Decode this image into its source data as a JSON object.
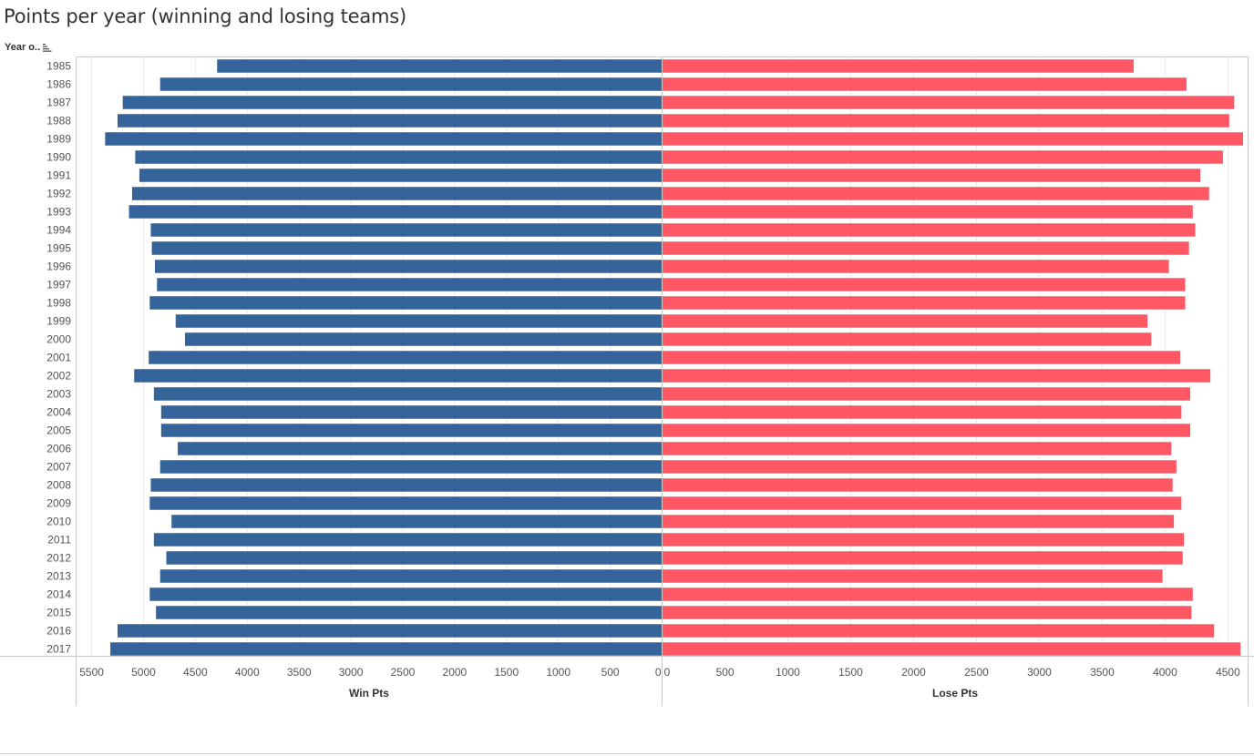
{
  "title": "Points per year (winning and losing teams)",
  "row_header": {
    "label": "Year o..",
    "sort_icon": "sort-descending-icon"
  },
  "colors": {
    "win": "#35649a",
    "lose": "#fd5863",
    "grid": "#ebebeb",
    "axis": "#c9c9c9",
    "text": "#555555"
  },
  "chart_data": {
    "type": "bar",
    "orientation": "horizontal",
    "layout": "butterfly",
    "title": "Points per year (winning and losing teams)",
    "categories": [
      "1985",
      "1986",
      "1987",
      "1988",
      "1989",
      "1990",
      "1991",
      "1992",
      "1993",
      "1994",
      "1995",
      "1996",
      "1997",
      "1998",
      "1999",
      "2000",
      "2001",
      "2002",
      "2003",
      "2004",
      "2005",
      "2006",
      "2007",
      "2008",
      "2009",
      "2010",
      "2011",
      "2012",
      "2013",
      "2014",
      "2015",
      "2016",
      "2017"
    ],
    "series": [
      {
        "name": "Win Pts",
        "axis_label": "Win Pts",
        "direction": "left",
        "xlim": [
          0,
          5650
        ],
        "ticks": [
          5500,
          5000,
          4500,
          4000,
          3500,
          3000,
          2500,
          2000,
          1500,
          1000,
          500,
          0
        ],
        "values": [
          4290,
          4840,
          5200,
          5250,
          5370,
          5080,
          5040,
          5110,
          5140,
          4930,
          4920,
          4890,
          4870,
          4940,
          4690,
          4600,
          4950,
          5090,
          4900,
          4830,
          4830,
          4670,
          4840,
          4930,
          4940,
          4730,
          4900,
          4780,
          4840,
          4940,
          4880,
          5250,
          5320
        ]
      },
      {
        "name": "Lose Pts",
        "axis_label": "Lose Pts",
        "direction": "right",
        "xlim": [
          0,
          4660
        ],
        "ticks": [
          0,
          500,
          1000,
          1500,
          2000,
          2500,
          3000,
          3500,
          4000,
          4500
        ],
        "values": [
          3750,
          4170,
          4550,
          4510,
          4620,
          4460,
          4280,
          4350,
          4220,
          4240,
          4190,
          4030,
          4160,
          4160,
          3860,
          3890,
          4120,
          4360,
          4200,
          4130,
          4200,
          4050,
          4090,
          4060,
          4130,
          4070,
          4150,
          4140,
          3980,
          4220,
          4210,
          4390,
          4600
        ]
      }
    ],
    "grid": true,
    "legend": "none"
  }
}
